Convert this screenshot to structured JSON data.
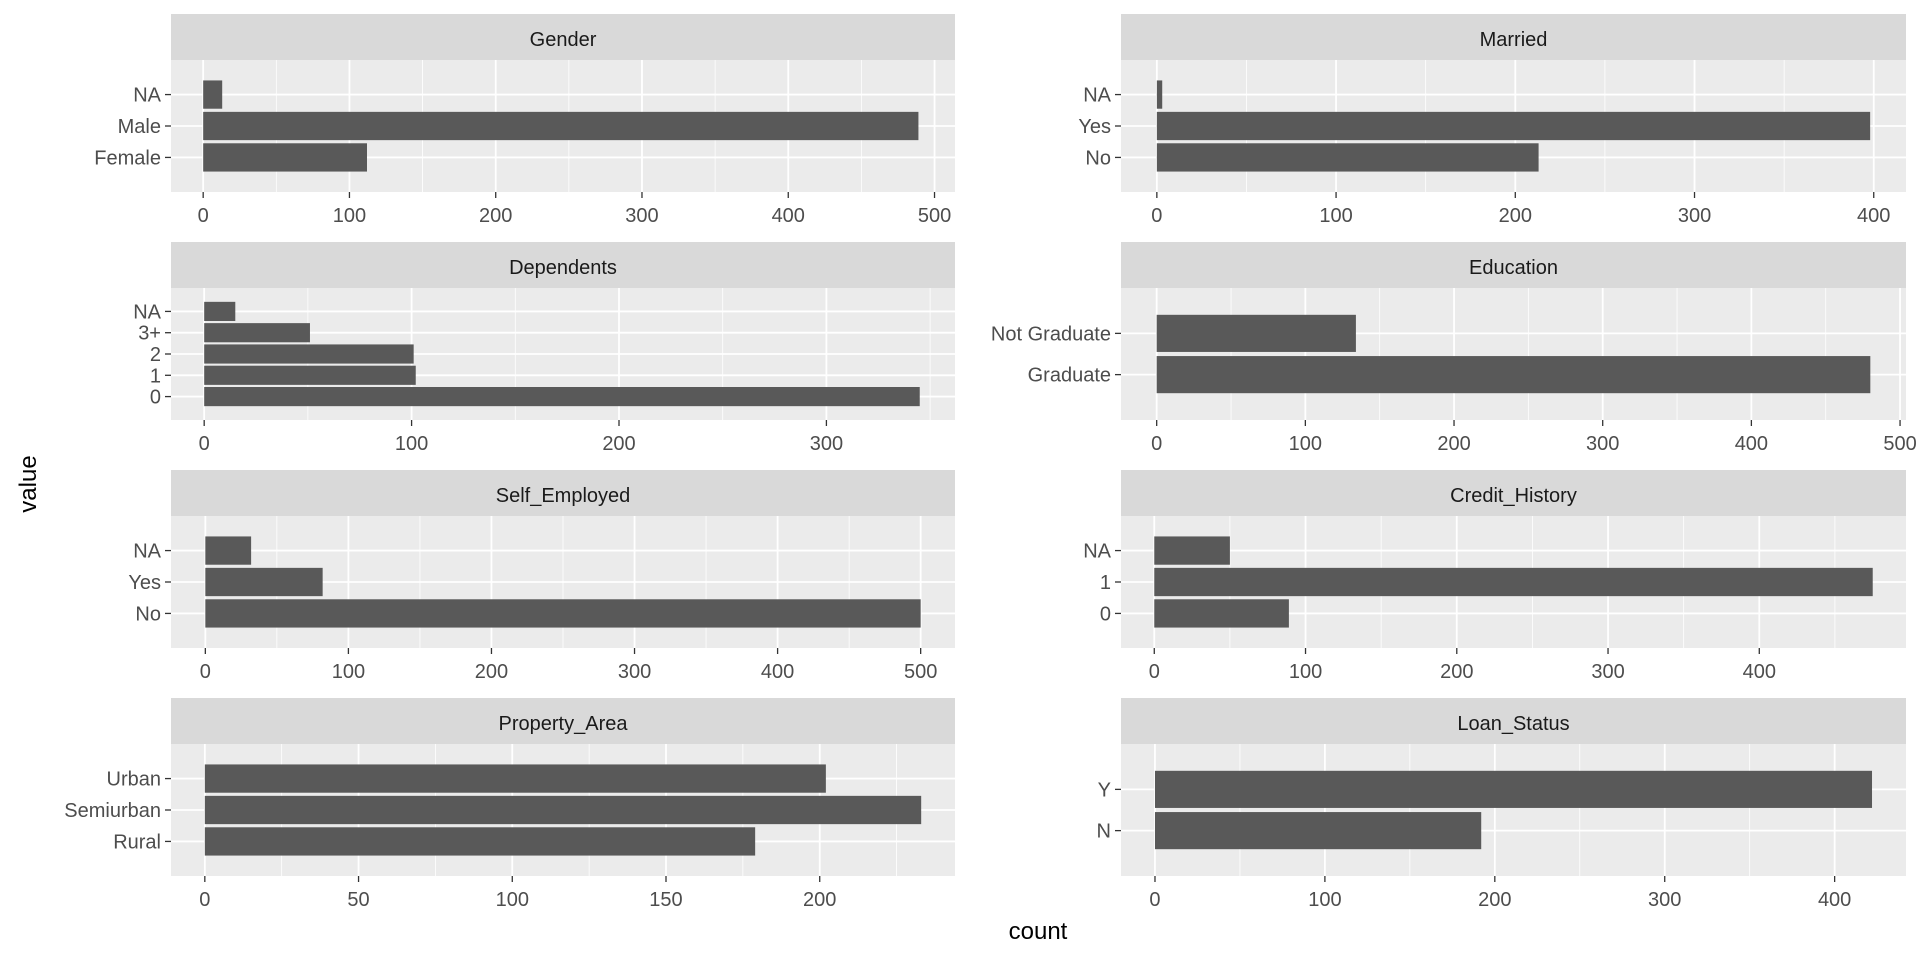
{
  "chart_data": {
    "type": "bar",
    "orientation": "horizontal",
    "layout": "facet grid, 4 rows x 2 columns, free scales",
    "xlabel": "count",
    "ylabel": "value",
    "colors": {
      "bar": "#595959",
      "panel_background": "#ebebeb",
      "strip_background": "#d9d9d9",
      "grid_major": "#ffffff",
      "tick_text": "#4d4d4d"
    },
    "grid": true,
    "facets": [
      {
        "title": "Gender",
        "categories": [
          "Female",
          "Male",
          "NA"
        ],
        "values": [
          112,
          489,
          13
        ],
        "xlim": [
          -22,
          514
        ],
        "xticks": [
          0,
          100,
          200,
          300,
          400,
          500
        ]
      },
      {
        "title": "Married",
        "categories": [
          "No",
          "Yes",
          "NA"
        ],
        "values": [
          213,
          398,
          3
        ],
        "xlim": [
          -20,
          418
        ],
        "xticks": [
          0,
          100,
          200,
          300,
          400
        ]
      },
      {
        "title": "Dependents",
        "categories": [
          "0",
          "1",
          "2",
          "3+",
          "NA"
        ],
        "values": [
          345,
          102,
          101,
          51,
          15
        ],
        "xlim": [
          -16,
          362
        ],
        "xticks": [
          0,
          100,
          200,
          300
        ]
      },
      {
        "title": "Education",
        "categories": [
          "Graduate",
          "Not Graduate"
        ],
        "values": [
          480,
          134
        ],
        "xlim": [
          -24,
          504
        ],
        "xticks": [
          0,
          100,
          200,
          300,
          400,
          500
        ]
      },
      {
        "title": "Self_Employed",
        "categories": [
          "No",
          "Yes",
          "NA"
        ],
        "values": [
          500,
          82,
          32
        ],
        "xlim": [
          -24,
          524
        ],
        "xticks": [
          0,
          100,
          200,
          300,
          400,
          500
        ]
      },
      {
        "title": "Credit_History",
        "categories": [
          "0",
          "1",
          "NA"
        ],
        "values": [
          89,
          475,
          50
        ],
        "xlim": [
          -22,
          497
        ],
        "xticks": [
          0,
          100,
          200,
          300,
          400
        ]
      },
      {
        "title": "Property_Area",
        "categories": [
          "Rural",
          "Semiurban",
          "Urban"
        ],
        "values": [
          179,
          233,
          202
        ],
        "xlim": [
          -11,
          244
        ],
        "xticks": [
          0,
          50,
          100,
          150,
          200
        ]
      },
      {
        "title": "Loan_Status",
        "categories": [
          "N",
          "Y"
        ],
        "values": [
          192,
          422
        ],
        "xlim": [
          -20,
          442
        ],
        "xticks": [
          0,
          100,
          200,
          300,
          400
        ]
      }
    ]
  }
}
